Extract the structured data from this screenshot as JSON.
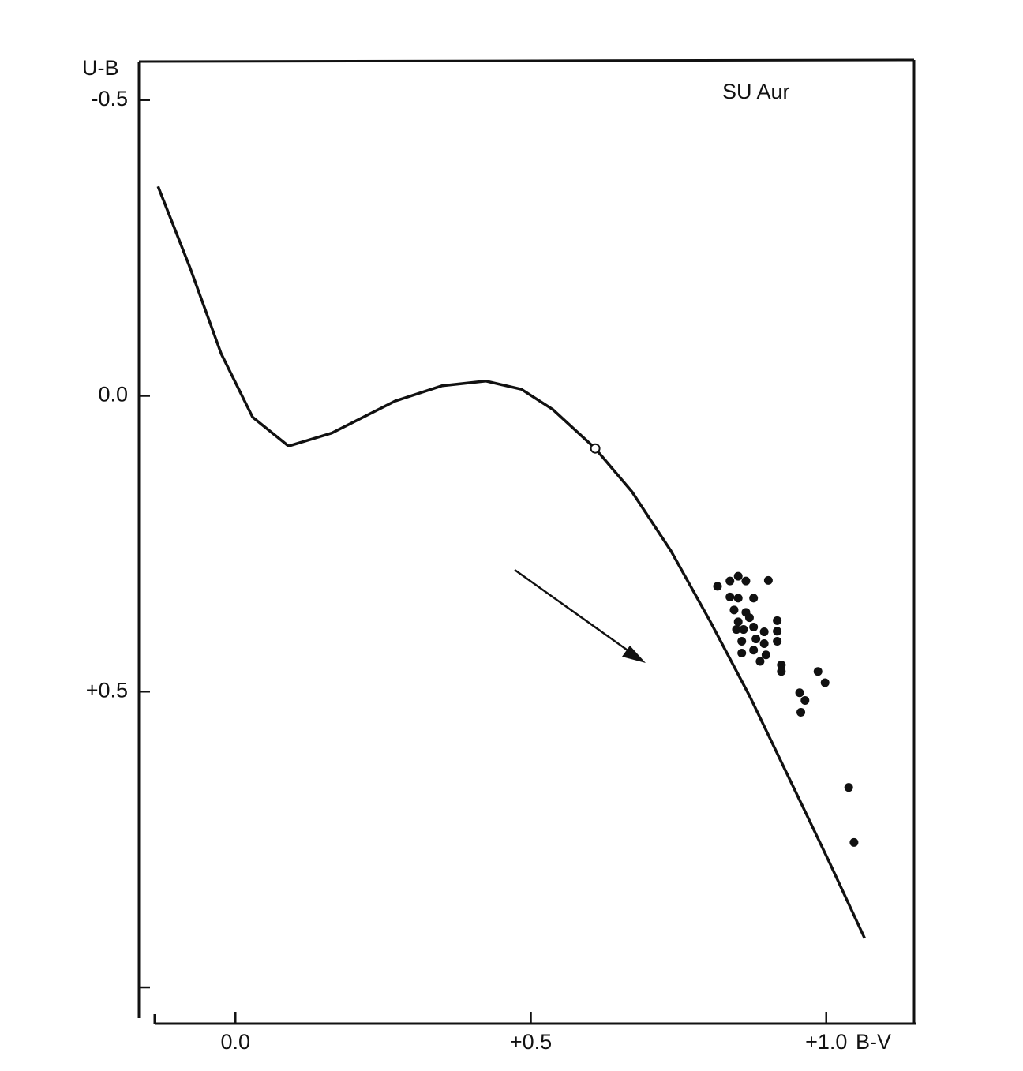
{
  "chart_data": {
    "type": "scatter",
    "title": "SU Aur",
    "x_label": "B-V",
    "y_label": "U-B",
    "xlim": [
      -0.15,
      1.15
    ],
    "ylim": [
      1.06,
      -0.565
    ],
    "xticks": [
      {
        "value": 0,
        "label": "0.0"
      },
      {
        "value": 0.5,
        "label": "+0.5"
      },
      {
        "value": 1.0,
        "label": "+1.0"
      }
    ],
    "yticks": [
      {
        "value": -0.5,
        "label": "-0.5"
      },
      {
        "value": 0,
        "label": "0.0"
      },
      {
        "value": 0.5,
        "label": "+0.5"
      },
      {
        "value": 1.0,
        "label": null
      }
    ],
    "series": [
      {
        "type": "line",
        "color": "#111",
        "x": [
          -0.131,
          -0.077,
          -0.024,
          0.029,
          0.09,
          0.163,
          0.27,
          0.35,
          0.424,
          0.484,
          0.537,
          0.609,
          0.671,
          0.737,
          0.804,
          0.871,
          0.938,
          1.005,
          1.065
        ],
        "values": [
          -0.354,
          -0.217,
          -0.071,
          0.036,
          0.085,
          0.063,
          0.009,
          -0.017,
          -0.025,
          -0.011,
          0.023,
          0.089,
          0.162,
          0.262,
          0.382,
          0.509,
          0.648,
          0.788,
          0.917
        ]
      },
      {
        "type": "scatter",
        "marker": "open",
        "color": "#111",
        "x": [
          0.609
        ],
        "values": [
          0.089
        ]
      },
      {
        "type": "scatter",
        "marker": "filled",
        "color": "#111",
        "x": [
          0.816,
          0.837,
          0.851,
          0.864,
          0.902,
          0.837,
          0.851,
          0.877,
          0.844,
          0.864,
          0.851,
          0.87,
          0.917,
          0.848,
          0.86,
          0.877,
          0.895,
          0.917,
          0.857,
          0.881,
          0.895,
          0.917,
          0.857,
          0.877,
          0.898,
          0.888,
          0.924,
          0.924,
          0.986,
          0.998,
          0.955,
          0.964,
          0.957,
          1.038,
          1.047
        ],
        "values": [
          0.322,
          0.313,
          0.305,
          0.313,
          0.312,
          0.34,
          0.342,
          0.342,
          0.362,
          0.366,
          0.382,
          0.375,
          0.38,
          0.395,
          0.395,
          0.391,
          0.399,
          0.398,
          0.415,
          0.411,
          0.419,
          0.415,
          0.435,
          0.43,
          0.438,
          0.449,
          0.455,
          0.466,
          0.466,
          0.485,
          0.502,
          0.515,
          0.535,
          0.662,
          0.755
        ]
      }
    ]
  }
}
